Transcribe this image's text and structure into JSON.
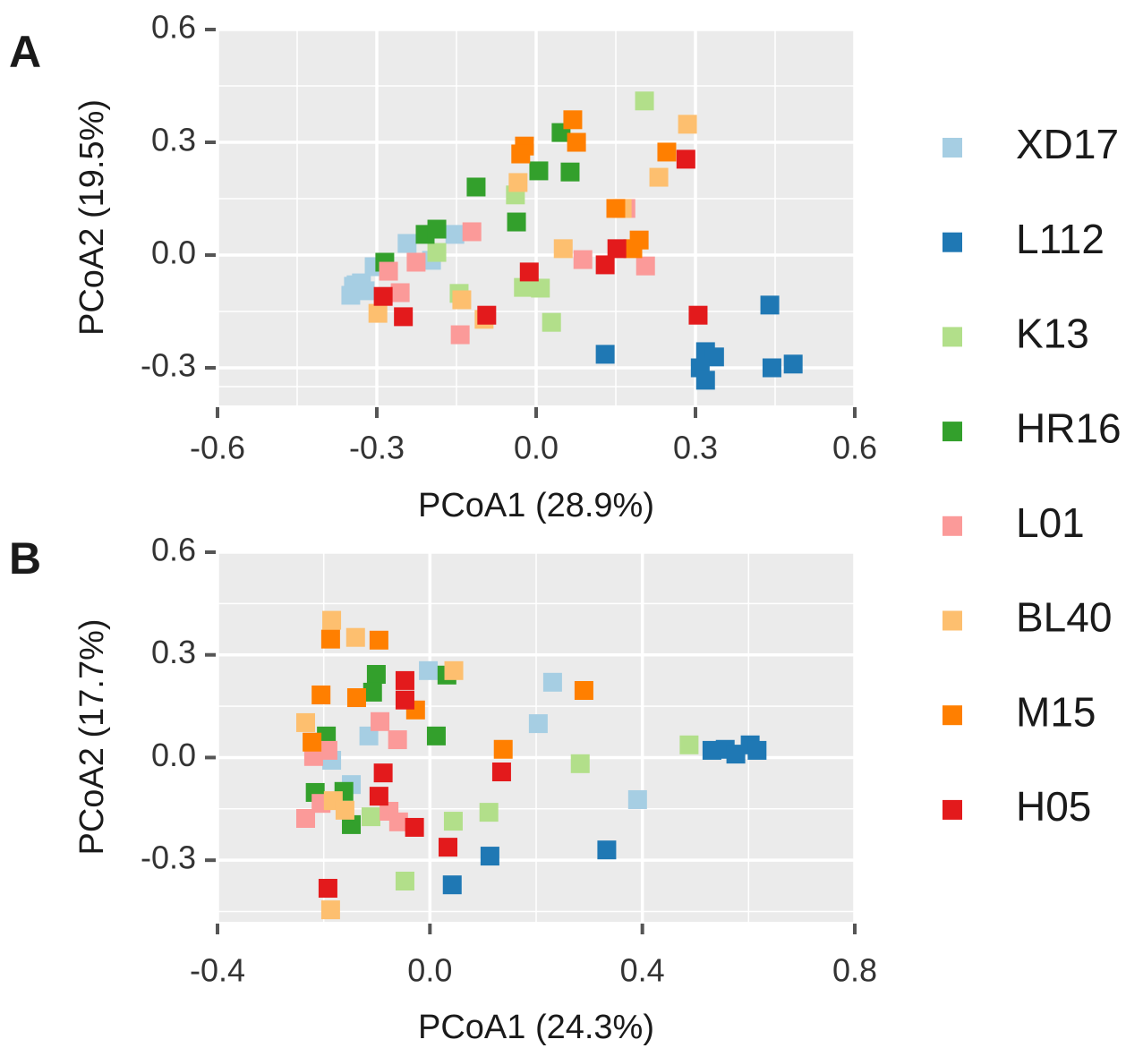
{
  "chart_data": [
    {
      "type": "scatter",
      "panel_label": "A",
      "xlabel": "PCoA1 (28.9%)",
      "ylabel": "PCoA2 (19.5%)",
      "xlim": [
        -0.6,
        0.6
      ],
      "ylim": [
        -0.4,
        0.6
      ],
      "xticks": [
        -0.6,
        -0.3,
        {
          "value": 0,
          "label": "0.0"
        },
        0.3,
        0.6
      ],
      "yticks": [
        -0.3,
        {
          "value": 0,
          "label": "0.0"
        },
        0.3,
        0.6
      ],
      "x_minor_grid": [
        -0.45,
        -0.15,
        0.15,
        0.45
      ],
      "y_minor_grid": [
        -0.35,
        -0.15,
        0.15,
        0.45
      ],
      "grid": true,
      "series": [
        {
          "name": "XD17",
          "color": "#a6cee3",
          "x": [
            -0.243,
            -0.197,
            -0.153,
            -0.305,
            -0.339,
            -0.322,
            -0.344,
            -0.349,
            -0.329
          ],
          "y": [
            0.031,
            -0.014,
            0.055,
            -0.031,
            -0.079,
            -0.095,
            -0.083,
            -0.107,
            -0.074
          ]
        },
        {
          "name": "L112",
          "color": "#1f78b4",
          "x": [
            0.13,
            0.44,
            0.484,
            0.444,
            0.319,
            0.336,
            0.309,
            0.319
          ],
          "y": [
            -0.264,
            -0.133,
            -0.29,
            -0.3,
            -0.257,
            -0.271,
            -0.3,
            -0.333
          ]
        },
        {
          "name": "K13",
          "color": "#b2df8a",
          "x": [
            0.204,
            -0.039,
            -0.145,
            -0.024,
            0.008,
            0.029,
            -0.187
          ],
          "y": [
            0.41,
            0.16,
            -0.102,
            -0.086,
            -0.088,
            -0.179,
            0.007
          ]
        },
        {
          "name": "HR16",
          "color": "#33a02c",
          "x": [
            0.047,
            0.005,
            0.064,
            -0.113,
            -0.037,
            -0.209,
            -0.187,
            -0.285
          ],
          "y": [
            0.326,
            0.224,
            0.221,
            0.181,
            0.088,
            0.055,
            0.069,
            -0.019
          ]
        },
        {
          "name": "L01",
          "color": "#fb9a99",
          "x": [
            -0.121,
            -0.226,
            -0.278,
            -0.256,
            -0.143,
            0.088,
            0.206,
            0.169
          ],
          "y": [
            0.062,
            -0.019,
            -0.043,
            -0.1,
            -0.212,
            -0.012,
            -0.029,
            0.124
          ]
        },
        {
          "name": "BL40",
          "color": "#fdbf6f",
          "x": [
            0.285,
            0.231,
            -0.034,
            0.051,
            0.162,
            -0.298,
            -0.14,
            -0.098
          ],
          "y": [
            0.348,
            0.207,
            0.193,
            0.017,
            0.124,
            -0.155,
            -0.119,
            -0.171
          ]
        },
        {
          "name": "M15",
          "color": "#ff7f00",
          "x": [
            0.069,
            -0.022,
            -0.029,
            0.076,
            0.246,
            0.15,
            0.194,
            0.182
          ],
          "y": [
            0.36,
            0.29,
            0.269,
            0.3,
            0.274,
            0.124,
            0.04,
            0.017
          ]
        },
        {
          "name": "H05",
          "color": "#e31a1c",
          "x": [
            0.282,
            0.152,
            0.13,
            -0.013,
            0.305,
            -0.093,
            -0.25,
            -0.288
          ],
          "y": [
            0.255,
            0.017,
            -0.026,
            -0.045,
            -0.16,
            -0.16,
            -0.164,
            -0.11
          ]
        }
      ]
    },
    {
      "type": "scatter",
      "panel_label": "B",
      "xlabel": "PCoA1 (24.3%)",
      "ylabel": "PCoA2 (17.7%)",
      "xlim": [
        -0.4,
        0.8
      ],
      "ylim": [
        -0.48,
        0.6
      ],
      "xticks": [
        -0.4,
        {
          "value": 0,
          "label": "0.0"
        },
        0.4,
        0.8
      ],
      "yticks": [
        -0.3,
        {
          "value": 0,
          "label": "0.0"
        },
        0.3,
        0.6
      ],
      "x_minor_grid": [
        -0.2,
        0.2,
        0.6
      ],
      "y_minor_grid": [
        -0.45,
        -0.15,
        0.15,
        0.45
      ],
      "grid": true,
      "series": [
        {
          "name": "XD17",
          "color": "#a6cee3",
          "x": [
            -0.003,
            0.231,
            0.204,
            0.391,
            -0.115,
            -0.185,
            -0.148
          ],
          "y": [
            0.254,
            0.22,
            0.099,
            -0.123,
            0.063,
            -0.008,
            -0.079
          ]
        },
        {
          "name": "L112",
          "color": "#1f78b4",
          "x": [
            0.531,
            0.556,
            0.576,
            0.603,
            0.616,
            0.333,
            0.113,
            0.042
          ],
          "y": [
            0.021,
            0.024,
            0.01,
            0.037,
            0.021,
            -0.27,
            -0.288,
            -0.372
          ]
        },
        {
          "name": "K13",
          "color": "#b2df8a",
          "x": [
            0.488,
            0.283,
            0.111,
            0.044,
            -0.111,
            -0.047
          ],
          "y": [
            0.037,
            -0.018,
            -0.16,
            -0.186,
            -0.173,
            -0.361
          ]
        },
        {
          "name": "HR16",
          "color": "#33a02c",
          "x": [
            -0.101,
            -0.108,
            0.012,
            -0.195,
            -0.216,
            -0.162,
            -0.148,
            0.032
          ],
          "y": [
            0.243,
            0.191,
            0.063,
            0.063,
            -0.102,
            -0.099,
            -0.196,
            0.241
          ]
        },
        {
          "name": "L01",
          "color": "#fb9a99",
          "x": [
            -0.094,
            -0.061,
            -0.192,
            -0.219,
            -0.205,
            -0.234,
            -0.077,
            -0.059
          ],
          "y": [
            0.105,
            0.052,
            0.021,
            0.003,
            -0.134,
            -0.178,
            -0.157,
            -0.188
          ]
        },
        {
          "name": "BL40",
          "color": "#fdbf6f",
          "x": [
            -0.185,
            -0.14,
            0.045,
            -0.234,
            -0.182,
            -0.16,
            -0.187
          ],
          "y": [
            0.401,
            0.351,
            0.254,
            0.102,
            -0.126,
            -0.154,
            -0.445
          ]
        },
        {
          "name": "M15",
          "color": "#ff7f00",
          "x": [
            -0.187,
            -0.096,
            -0.205,
            -0.138,
            -0.027,
            0.29,
            0.138,
            -0.222
          ],
          "y": [
            0.346,
            0.343,
            0.183,
            0.175,
            0.139,
            0.196,
            0.024,
            0.045
          ]
        },
        {
          "name": "H05",
          "color": "#e31a1c",
          "x": [
            -0.047,
            -0.047,
            -0.088,
            -0.096,
            -0.029,
            0.135,
            0.034,
            -0.192
          ],
          "y": [
            0.225,
            0.168,
            -0.045,
            -0.113,
            -0.204,
            -0.042,
            -0.262,
            -0.382
          ]
        }
      ]
    }
  ]
}
